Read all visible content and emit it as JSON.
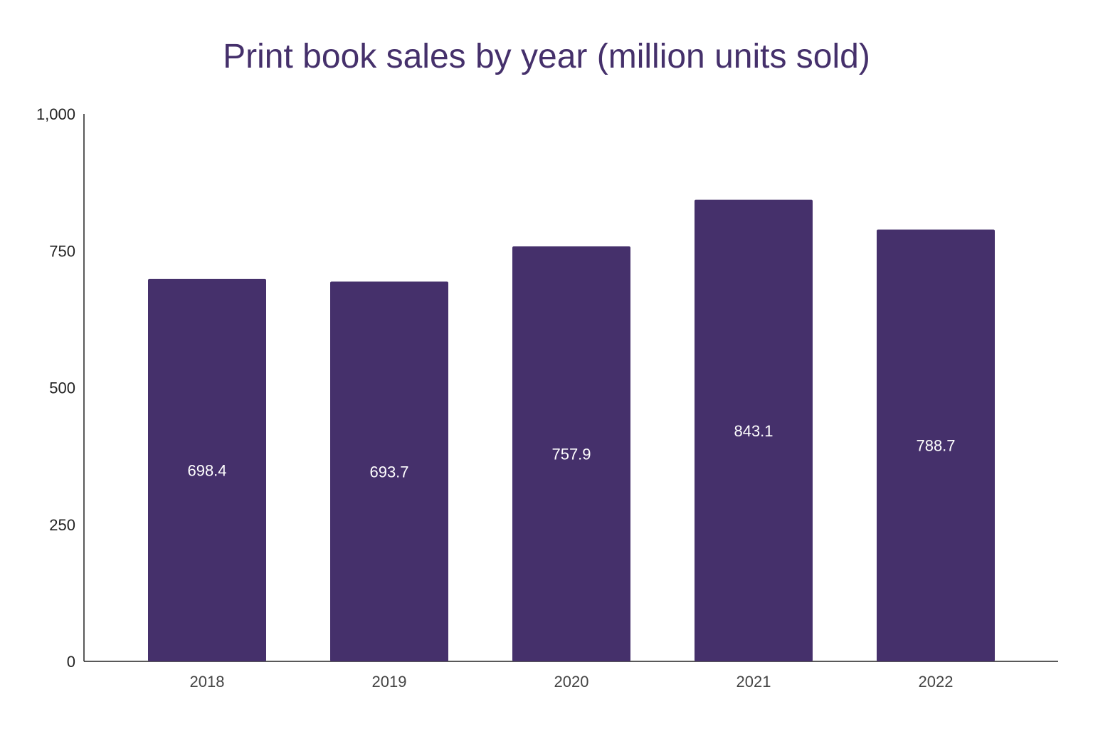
{
  "chart_data": {
    "type": "bar",
    "title": "Print book sales by year (million units sold)",
    "xlabel": "",
    "ylabel": "",
    "categories": [
      "2018",
      "2019",
      "2020",
      "2021",
      "2022"
    ],
    "values": [
      698.4,
      693.7,
      757.9,
      843.1,
      788.7
    ],
    "data_labels": [
      "698.4",
      "693.7",
      "757.9",
      "843.1",
      "788.7"
    ],
    "ylim": [
      0,
      1000
    ],
    "yticks": [
      0,
      250,
      500,
      750,
      1000
    ],
    "ytick_labels": [
      "0",
      "250",
      "500",
      "750",
      "1,000"
    ],
    "grid": false,
    "legend": "none",
    "colors": {
      "bar": "#45306b",
      "title": "#45306b",
      "label": "#ffffff"
    }
  }
}
